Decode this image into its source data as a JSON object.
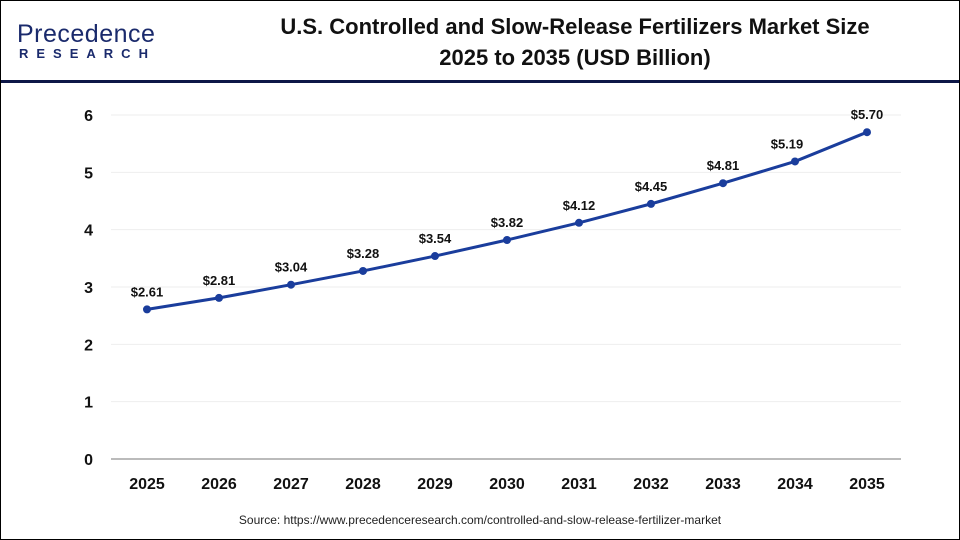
{
  "logo": {
    "line1": "Precedence",
    "line2": "RESEARCH"
  },
  "title_line1": "U.S. Controlled and Slow-Release Fertilizers Market Size",
  "title_line2": "2025 to 2035 (USD Billion)",
  "source": "Source: https://www.precedenceresearch.com/controlled-and-slow-release-fertilizer-market",
  "chart_data": {
    "type": "line",
    "title": "U.S. Controlled and Slow-Release Fertilizers Market Size 2025 to 2035 (USD Billion)",
    "categories": [
      "2025",
      "2026",
      "2027",
      "2028",
      "2029",
      "2030",
      "2031",
      "2032",
      "2033",
      "2034",
      "2035"
    ],
    "values": [
      2.61,
      2.81,
      3.04,
      3.28,
      3.54,
      3.82,
      4.12,
      4.45,
      4.81,
      5.19,
      5.7
    ],
    "data_labels": [
      "$2.61",
      "$2.81",
      "$3.04",
      "$3.28",
      "$3.54",
      "$3.82",
      "$4.12",
      "$4.45",
      "$4.81",
      "$5.19",
      "$5.70"
    ],
    "yticks": [
      "0",
      "1",
      "2",
      "3",
      "4",
      "5",
      "6"
    ],
    "ylim": [
      0,
      6
    ],
    "grid": true,
    "line_color": "#1a3d9c"
  }
}
